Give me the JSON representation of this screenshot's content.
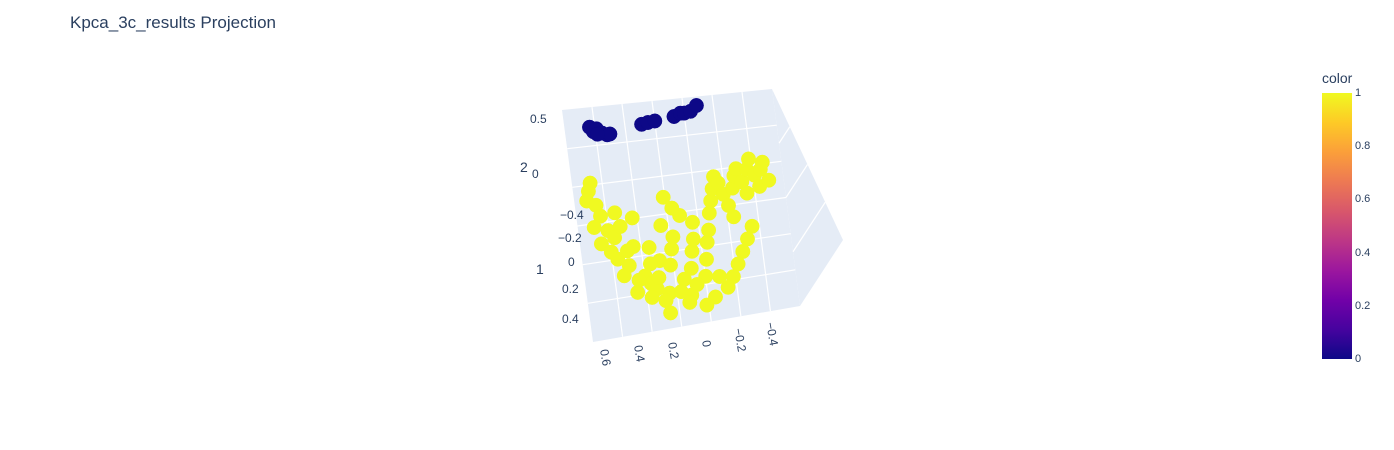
{
  "chart_data": {
    "type": "scatter3d",
    "title": "Kpca_3c_results Projection",
    "axes": {
      "x": {
        "label": "",
        "ticks": [
          "0.6",
          "0.4",
          "0.2",
          "0",
          "−0.2",
          "−0.4"
        ]
      },
      "y": {
        "label": "1",
        "ticks": [
          "−0.4",
          "−0.2",
          "0",
          "0.2",
          "0.4"
        ]
      },
      "z": {
        "label": "2",
        "ticks": [
          "0.5",
          "0"
        ]
      }
    },
    "colorbar": {
      "title": "color",
      "ticks": [
        "1",
        "0.8",
        "0.6",
        "0.4",
        "0.2",
        "0"
      ],
      "colors": [
        "#0d0887",
        "#46039f",
        "#7201a8",
        "#9c179e",
        "#bd3786",
        "#d8576b",
        "#ed7953",
        "#fb9f3a",
        "#fdca26",
        "#f0f921"
      ]
    },
    "series": [
      {
        "class": 0,
        "color": "#0d0887",
        "points": [
          [
            0.62,
            -0.32,
            0.56
          ],
          [
            0.6,
            -0.3,
            0.54
          ],
          [
            0.58,
            -0.31,
            0.55
          ],
          [
            0.55,
            -0.29,
            0.53
          ],
          [
            0.52,
            -0.28,
            0.52
          ],
          [
            0.5,
            -0.3,
            0.51
          ],
          [
            0.57,
            -0.33,
            0.5
          ],
          [
            0.3,
            -0.34,
            0.52
          ],
          [
            0.26,
            -0.35,
            0.52
          ],
          [
            0.22,
            -0.34,
            0.53
          ],
          [
            0.1,
            -0.36,
            0.53
          ],
          [
            0.06,
            -0.37,
            0.54
          ],
          [
            0.04,
            -0.35,
            0.55
          ],
          [
            0.0,
            -0.36,
            0.55
          ],
          [
            -0.04,
            -0.38,
            0.57
          ]
        ]
      },
      {
        "class": 1,
        "color": "#f0f921",
        "points": [
          [
            0.62,
            -0.3,
            0.2
          ],
          [
            0.64,
            -0.25,
            0.18
          ],
          [
            0.66,
            -0.2,
            0.15
          ],
          [
            0.6,
            -0.22,
            0.1
          ],
          [
            0.58,
            -0.18,
            0.05
          ],
          [
            0.63,
            -0.12,
            0.02
          ],
          [
            0.55,
            -0.1,
            0.0
          ],
          [
            0.52,
            -0.05,
            -0.02
          ],
          [
            0.5,
            -0.15,
            0.08
          ],
          [
            0.48,
            -0.08,
            0.03
          ],
          [
            0.6,
            -0.05,
            -0.05
          ],
          [
            0.55,
            0.0,
            -0.08
          ],
          [
            0.52,
            0.05,
            -0.1
          ],
          [
            0.46,
            0.1,
            -0.12
          ],
          [
            0.5,
            0.15,
            -0.15
          ],
          [
            0.42,
            0.02,
            -0.05
          ],
          [
            0.4,
            -0.12,
            0.05
          ],
          [
            0.38,
            0.18,
            -0.15
          ],
          [
            0.35,
            0.22,
            -0.18
          ],
          [
            0.32,
            0.25,
            -0.2
          ],
          [
            0.3,
            0.2,
            -0.16
          ],
          [
            0.28,
            0.12,
            -0.1
          ],
          [
            0.33,
            0.05,
            -0.05
          ],
          [
            0.25,
            0.28,
            -0.22
          ],
          [
            0.22,
            0.15,
            -0.12
          ],
          [
            0.2,
            0.08,
            -0.06
          ],
          [
            0.18,
            0.02,
            -0.02
          ],
          [
            0.24,
            -0.05,
            0.02
          ],
          [
            0.15,
            0.22,
            -0.18
          ],
          [
            0.12,
            0.3,
            -0.24
          ],
          [
            0.1,
            0.18,
            -0.14
          ],
          [
            0.08,
            0.1,
            -0.08
          ],
          [
            0.06,
            0.04,
            -0.04
          ],
          [
            0.05,
            -0.04,
            0.02
          ],
          [
            0.12,
            -0.08,
            0.05
          ],
          [
            0.16,
            -0.12,
            0.08
          ],
          [
            0.2,
            -0.18,
            0.12
          ],
          [
            0.02,
            0.22,
            -0.18
          ],
          [
            0.0,
            0.14,
            -0.12
          ],
          [
            -0.02,
            0.06,
            -0.06
          ],
          [
            -0.04,
            0.0,
            -0.02
          ],
          [
            -0.06,
            -0.08,
            0.04
          ],
          [
            -0.08,
            -0.14,
            0.08
          ],
          [
            -0.1,
            -0.2,
            0.12
          ],
          [
            -0.12,
            -0.26,
            0.16
          ],
          [
            -0.14,
            -0.22,
            0.14
          ],
          [
            -0.16,
            -0.16,
            0.1
          ],
          [
            -0.18,
            -0.1,
            0.06
          ],
          [
            -0.2,
            -0.04,
            0.02
          ],
          [
            -0.22,
            -0.18,
            0.12
          ],
          [
            -0.24,
            -0.24,
            0.16
          ],
          [
            -0.26,
            -0.28,
            0.18
          ],
          [
            -0.28,
            -0.2,
            0.14
          ],
          [
            -0.3,
            -0.14,
            0.1
          ],
          [
            -0.32,
            -0.26,
            0.18
          ],
          [
            -0.34,
            -0.3,
            0.22
          ],
          [
            -0.36,
            -0.22,
            0.16
          ],
          [
            -0.38,
            -0.16,
            0.12
          ],
          [
            -0.4,
            -0.24,
            0.18
          ],
          [
            -0.42,
            -0.28,
            0.2
          ],
          [
            -0.44,
            -0.18,
            0.14
          ],
          [
            -0.3,
            0.02,
            -0.02
          ],
          [
            -0.26,
            0.08,
            -0.06
          ],
          [
            -0.22,
            0.14,
            -0.1
          ],
          [
            -0.18,
            0.2,
            -0.14
          ],
          [
            -0.14,
            0.26,
            -0.18
          ],
          [
            -0.1,
            0.3,
            -0.22
          ],
          [
            -0.06,
            0.24,
            -0.18
          ],
          [
            -0.02,
            0.32,
            -0.26
          ],
          [
            0.04,
            0.36,
            -0.28
          ],
          [
            0.28,
            0.32,
            -0.24
          ],
          [
            0.36,
            0.3,
            -0.22
          ],
          [
            0.44,
            0.26,
            -0.2
          ],
          [
            0.26,
            0.36,
            -0.3
          ],
          [
            0.14,
            0.34,
            -0.26
          ],
          [
            0.42,
            0.2,
            -0.16
          ],
          [
            0.18,
            0.28,
            -0.22
          ],
          [
            0.08,
            0.26,
            -0.2
          ],
          [
            0.34,
            0.14,
            -0.1
          ],
          [
            0.46,
            0.04,
            -0.06
          ]
        ]
      }
    ]
  }
}
